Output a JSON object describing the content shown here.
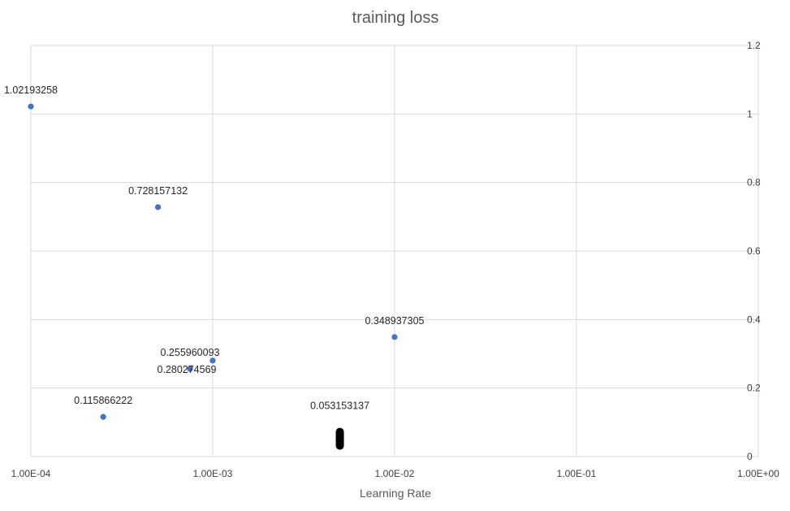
{
  "chart_data": {
    "type": "scatter",
    "title": "training loss",
    "xlabel": "Learning Rate",
    "ylabel": "",
    "x_scale": "log",
    "xlim": [
      0.0001,
      1
    ],
    "ylim": [
      0,
      1.2
    ],
    "x_ticks": [
      "1.00E-04",
      "1.00E-03",
      "1.00E-02",
      "1.00E-01",
      "1.00E+00"
    ],
    "y_ticks": [
      "0",
      "0.2",
      "0.4",
      "0.6",
      "0.8",
      "1",
      "1.2"
    ],
    "y_axis_position": "right",
    "grid": true,
    "marker_color": "#4472c4",
    "highlight_color": "#000000",
    "points": [
      {
        "x": 0.0001,
        "y": 1.02193258,
        "label": "1.02193258"
      },
      {
        "x": 0.0005,
        "y": 0.728157132,
        "label": "0.728157132"
      },
      {
        "x": 0.00025,
        "y": 0.115866222,
        "label": "0.115866222"
      },
      {
        "x": 0.00075,
        "y": 0.255960093,
        "label": "0.255960093"
      },
      {
        "x": 0.001,
        "y": 0.280274569,
        "label": "0.280274569"
      },
      {
        "x": 0.01,
        "y": 0.348937305,
        "label": "0.348937305"
      },
      {
        "x": 0.005,
        "y": 0.053153137,
        "label": "0.053153137",
        "highlight": true
      }
    ]
  }
}
